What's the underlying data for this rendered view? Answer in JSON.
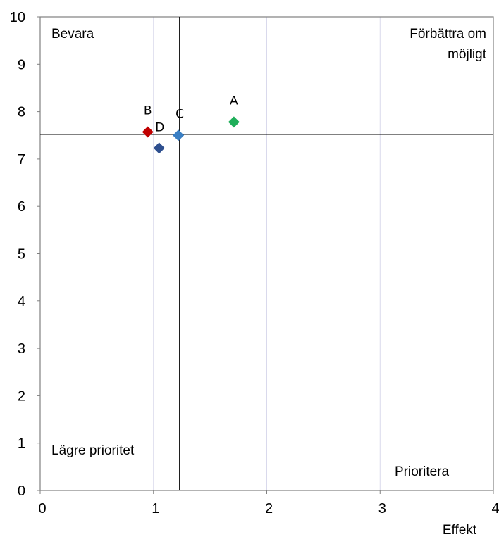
{
  "chart_data": {
    "type": "scatter",
    "title": "",
    "xlabel": "Effekt",
    "ylabel": "",
    "xlim": [
      0,
      4
    ],
    "ylim": [
      0,
      10
    ],
    "x_ticks": [
      0,
      1,
      2,
      3,
      4
    ],
    "y_ticks": [
      0,
      1,
      2,
      3,
      4,
      5,
      6,
      7,
      8,
      9,
      10
    ],
    "grid": "vertical",
    "legend": "none",
    "marker": "diamond",
    "divider_x": 1.23,
    "divider_y": 7.52,
    "quadrant_labels": {
      "top_left": "Bevara",
      "top_right": [
        "Förbättra om",
        "möjligt"
      ],
      "bottom_left": "Lägre prioritet",
      "bottom_right": "Prioritera"
    },
    "points": [
      {
        "label": "A",
        "x": 1.71,
        "y": 7.78,
        "color": "#1fae5a"
      },
      {
        "label": "B",
        "x": 0.95,
        "y": 7.57,
        "color": "#c00000"
      },
      {
        "label": "C",
        "x": 1.22,
        "y": 7.5,
        "color": "#3a7fc4"
      },
      {
        "label": "D",
        "x": 1.05,
        "y": 7.23,
        "color": "#2e4f8f"
      }
    ],
    "colors": {
      "grid": "#d9d9ec",
      "frame": "#808080",
      "divider": "#000000"
    }
  }
}
